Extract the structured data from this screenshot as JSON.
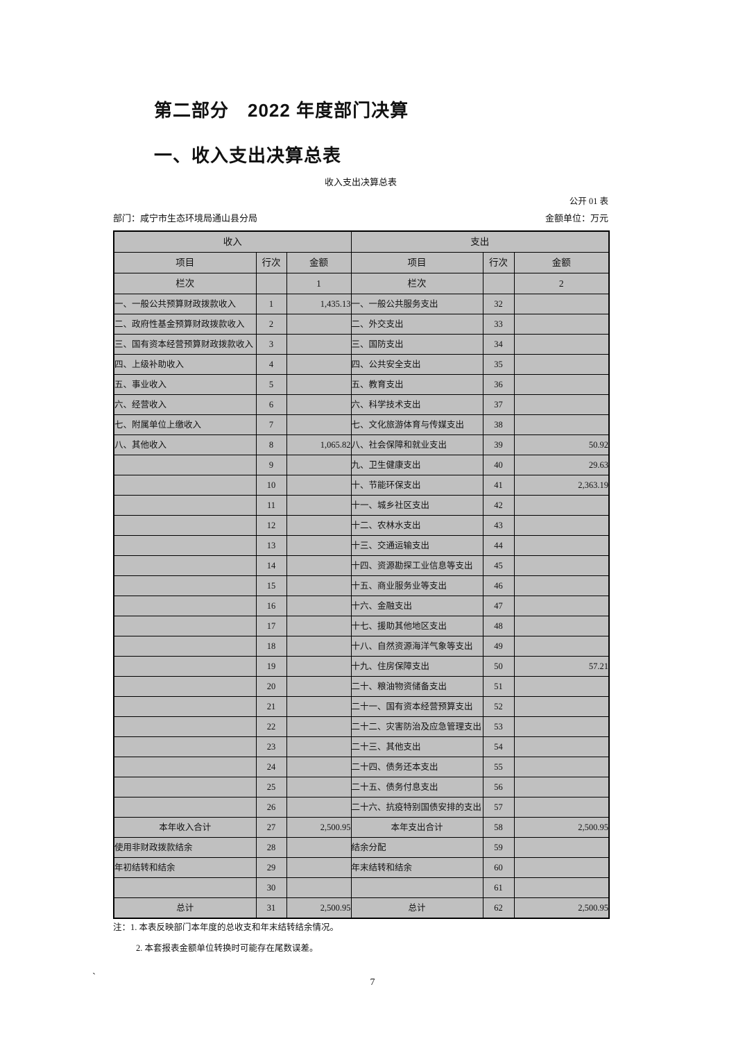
{
  "colors": {
    "cell_gray": "#c0c0c0",
    "border": "#000000",
    "text": "#111111",
    "amount_cell": "#ffffff"
  },
  "header": {
    "part_title": "第二部分　2022 年度部门决算",
    "section_title": "一、收入支出决算总表",
    "table_title": "收入支出决算总表",
    "table_code": "公开 01 表",
    "department_label": "部门：咸宁市生态环境局通山县分局",
    "unit_label": "金额单位：万元"
  },
  "table": {
    "income_header": "收入",
    "expense_header": "支出",
    "col_item": "项目",
    "col_rowno": "行次",
    "col_amount": "金额",
    "lanci_label": "栏次",
    "income_col_no": "1",
    "expense_col_no": "2",
    "rows": [
      {
        "income_item": "一、一般公共预算财政拨款收入",
        "income_row": "1",
        "income_amount": "1,435.13",
        "expense_item": "一、一般公共服务支出",
        "expense_row": "32",
        "expense_amount": "",
        "bold": false
      },
      {
        "income_item": "二、政府性基金预算财政拨款收入",
        "income_row": "2",
        "income_amount": "",
        "expense_item": "二、外交支出",
        "expense_row": "33",
        "expense_amount": "",
        "bold": false
      },
      {
        "income_item": "三、国有资本经营预算财政拨款收入",
        "income_row": "3",
        "income_amount": "",
        "expense_item": "三、国防支出",
        "expense_row": "34",
        "expense_amount": "",
        "bold": false
      },
      {
        "income_item": "四、上级补助收入",
        "income_row": "4",
        "income_amount": "",
        "expense_item": "四、公共安全支出",
        "expense_row": "35",
        "expense_amount": "",
        "bold": false
      },
      {
        "income_item": "五、事业收入",
        "income_row": "5",
        "income_amount": "",
        "expense_item": "五、教育支出",
        "expense_row": "36",
        "expense_amount": "",
        "bold": false
      },
      {
        "income_item": "六、经营收入",
        "income_row": "6",
        "income_amount": "",
        "expense_item": "六、科学技术支出",
        "expense_row": "37",
        "expense_amount": "",
        "bold": false
      },
      {
        "income_item": "七、附属单位上缴收入",
        "income_row": "7",
        "income_amount": "",
        "expense_item": "七、文化旅游体育与传媒支出",
        "expense_row": "38",
        "expense_amount": "",
        "bold": false
      },
      {
        "income_item": "八、其他收入",
        "income_row": "8",
        "income_amount": "1,065.82",
        "expense_item": "八、社会保障和就业支出",
        "expense_row": "39",
        "expense_amount": "50.92",
        "bold": false
      },
      {
        "income_item": "",
        "income_row": "9",
        "income_amount": "",
        "expense_item": "九、卫生健康支出",
        "expense_row": "40",
        "expense_amount": "29.63",
        "bold": false
      },
      {
        "income_item": "",
        "income_row": "10",
        "income_amount": "",
        "expense_item": "十、节能环保支出",
        "expense_row": "41",
        "expense_amount": "2,363.19",
        "bold": false
      },
      {
        "income_item": "",
        "income_row": "11",
        "income_amount": "",
        "expense_item": "十一、城乡社区支出",
        "expense_row": "42",
        "expense_amount": "",
        "bold": false
      },
      {
        "income_item": "",
        "income_row": "12",
        "income_amount": "",
        "expense_item": "十二、农林水支出",
        "expense_row": "43",
        "expense_amount": "",
        "bold": false
      },
      {
        "income_item": "",
        "income_row": "13",
        "income_amount": "",
        "expense_item": "十三、交通运输支出",
        "expense_row": "44",
        "expense_amount": "",
        "bold": false
      },
      {
        "income_item": "",
        "income_row": "14",
        "income_amount": "",
        "expense_item": "十四、资源勘探工业信息等支出",
        "expense_row": "45",
        "expense_amount": "",
        "bold": false
      },
      {
        "income_item": "",
        "income_row": "15",
        "income_amount": "",
        "expense_item": "十五、商业服务业等支出",
        "expense_row": "46",
        "expense_amount": "",
        "bold": false
      },
      {
        "income_item": "",
        "income_row": "16",
        "income_amount": "",
        "expense_item": "十六、金融支出",
        "expense_row": "47",
        "expense_amount": "",
        "bold": false
      },
      {
        "income_item": "",
        "income_row": "17",
        "income_amount": "",
        "expense_item": "十七、援助其他地区支出",
        "expense_row": "48",
        "expense_amount": "",
        "bold": false
      },
      {
        "income_item": "",
        "income_row": "18",
        "income_amount": "",
        "expense_item": "十八、自然资源海洋气象等支出",
        "expense_row": "49",
        "expense_amount": "",
        "bold": false
      },
      {
        "income_item": "",
        "income_row": "19",
        "income_amount": "",
        "expense_item": "十九、住房保障支出",
        "expense_row": "50",
        "expense_amount": "57.21",
        "bold": false
      },
      {
        "income_item": "",
        "income_row": "20",
        "income_amount": "",
        "expense_item": "二十、粮油物资储备支出",
        "expense_row": "51",
        "expense_amount": "",
        "bold": false
      },
      {
        "income_item": "",
        "income_row": "21",
        "income_amount": "",
        "expense_item": "二十一、国有资本经营预算支出",
        "expense_row": "52",
        "expense_amount": "",
        "bold": false
      },
      {
        "income_item": "",
        "income_row": "22",
        "income_amount": "",
        "expense_item": "二十二、灾害防治及应急管理支出",
        "expense_row": "53",
        "expense_amount": "",
        "bold": false
      },
      {
        "income_item": "",
        "income_row": "23",
        "income_amount": "",
        "expense_item": "二十三、其他支出",
        "expense_row": "54",
        "expense_amount": "",
        "bold": false
      },
      {
        "income_item": "",
        "income_row": "24",
        "income_amount": "",
        "expense_item": "二十四、债务还本支出",
        "expense_row": "55",
        "expense_amount": "",
        "bold": false
      },
      {
        "income_item": "",
        "income_row": "25",
        "income_amount": "",
        "expense_item": "二十五、债务付息支出",
        "expense_row": "56",
        "expense_amount": "",
        "bold": false
      },
      {
        "income_item": "",
        "income_row": "26",
        "income_amount": "",
        "expense_item": "二十六、抗疫特别国债安排的支出",
        "expense_row": "57",
        "expense_amount": "",
        "bold": false
      },
      {
        "income_item": "本年收入合计",
        "income_row": "27",
        "income_amount": "2,500.95",
        "expense_item": "本年支出合计",
        "expense_row": "58",
        "expense_amount": "2,500.95",
        "bold": true
      },
      {
        "income_item": "使用非财政拨款结余",
        "income_row": "28",
        "income_amount": "",
        "expense_item": "结余分配",
        "expense_row": "59",
        "expense_amount": "",
        "bold": false
      },
      {
        "income_item": "年初结转和结余",
        "income_row": "29",
        "income_amount": "",
        "expense_item": "年末结转和结余",
        "expense_row": "60",
        "expense_amount": "",
        "bold": false
      },
      {
        "income_item": "",
        "income_row": "30",
        "income_amount": "",
        "expense_item": "",
        "expense_row": "61",
        "expense_amount": "",
        "bold": false
      },
      {
        "income_item": "总计",
        "income_row": "31",
        "income_amount": "2,500.95",
        "expense_item": "总计",
        "expense_row": "62",
        "expense_amount": "2,500.95",
        "bold": true
      }
    ]
  },
  "footer": {
    "note1": "注：1. 本表反映部门本年度的总收支和年末结转结余情况。",
    "note2": "2. 本套报表金额单位转换时可能存在尾数误差。",
    "stray_mark": "`",
    "page_number": "7"
  }
}
